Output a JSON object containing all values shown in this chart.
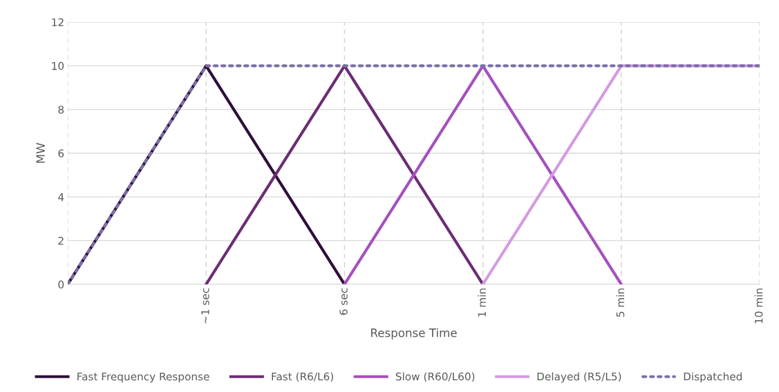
{
  "chart_data": {
    "type": "line",
    "xlabel": "Response Time",
    "ylabel": "MW",
    "categories": [
      null,
      "~1 sec",
      "6 sec",
      "1 min",
      "5 min",
      "10 min"
    ],
    "ylim": [
      0,
      12
    ],
    "yticks": [
      0,
      2,
      4,
      6,
      8,
      10,
      12
    ],
    "grid": true,
    "legend": "bottom",
    "line_style": "solid",
    "marker": "none",
    "series": [
      {
        "name": "Fast Frequency Response",
        "color": "#2e0f3a",
        "values": [
          0,
          10,
          0,
          null,
          null,
          null
        ]
      },
      {
        "name": "Fast (R6/L6)",
        "color": "#6b2d73",
        "values": [
          null,
          0,
          10,
          0,
          null,
          null
        ]
      },
      {
        "name": "Slow (R60/L60)",
        "color": "#a64fbf",
        "values": [
          null,
          null,
          0,
          10,
          0,
          null
        ]
      },
      {
        "name": "Delayed (R5/L5)",
        "color": "#d49be0",
        "values": [
          null,
          null,
          null,
          0,
          10,
          10
        ]
      },
      {
        "name": "Dispatched",
        "color": "#7b6fa8",
        "values": [
          0,
          10,
          10,
          10,
          10,
          10
        ],
        "line_style": "dotted"
      }
    ]
  }
}
